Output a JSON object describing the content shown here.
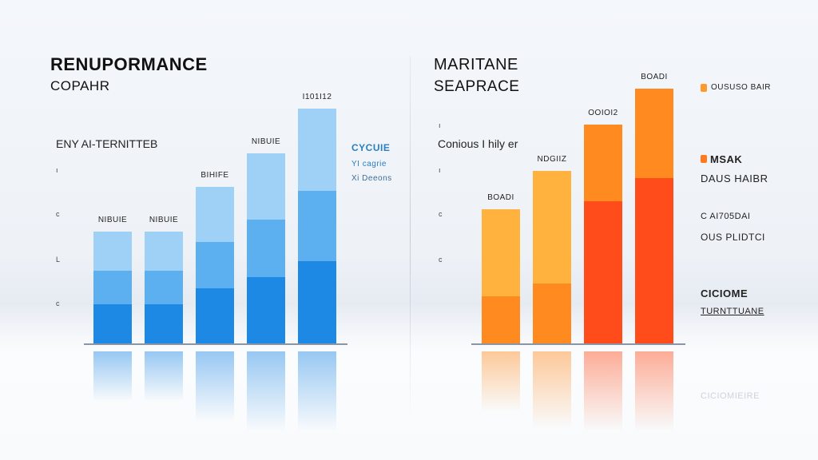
{
  "left_panel": {
    "title": "RENUPORMANCE",
    "subtitle": "COPAHR",
    "note": "ENY AI-TERNITTEB",
    "legend": {
      "title": "CYCUIE",
      "item1": "YI cagrie",
      "item2": "Xi Deeons"
    },
    "ticks": [
      "ı",
      "c",
      "L",
      "c"
    ]
  },
  "right_panel": {
    "title": "MARITANE",
    "subtitle": "SEAPRACE",
    "note": "Conious I hily er",
    "ticks": [
      "ı",
      "ı",
      "c",
      "c"
    ],
    "legend": {
      "item1": "OUSUSO BAIR",
      "item2_title": "MSAK",
      "item2_sub": "DAUS HAIBR",
      "item3": "C AI705DAI",
      "item3_sub": "OUS PLIDTCI",
      "item4_title": "CICIOME",
      "item4_sub": "TURNTTUANE",
      "item4_refl": "CICIOMIEIRE"
    }
  },
  "colors": {
    "blue_light": "#9fd0f5",
    "blue_mid": "#5cb0f0",
    "blue_dark": "#1e88e5",
    "orange_light": "#ffb23e",
    "orange_mid": "#ff8a1f",
    "orange_dark": "#ff4c1a"
  },
  "chart_data": [
    {
      "type": "bar",
      "categories": [
        "",
        "",
        "",
        "",
        ""
      ],
      "values": [
        5.0,
        5.0,
        7.0,
        8.5,
        10.5
      ],
      "data_labels": [
        "NIBUIE",
        "NIBUIE",
        "BIHIFE",
        "NIBUIE",
        "I101I12"
      ],
      "stacked_shading": true,
      "ylim": [
        0,
        12
      ]
    },
    {
      "type": "bar",
      "categories": [
        "",
        "",
        "",
        ""
      ],
      "values": [
        6.0,
        7.7,
        9.8,
        11.4
      ],
      "data_labels": [
        "BOADI",
        "NDGIIZ",
        "OOIOI2",
        "BOADI"
      ],
      "ylim": [
        0,
        12
      ]
    }
  ]
}
